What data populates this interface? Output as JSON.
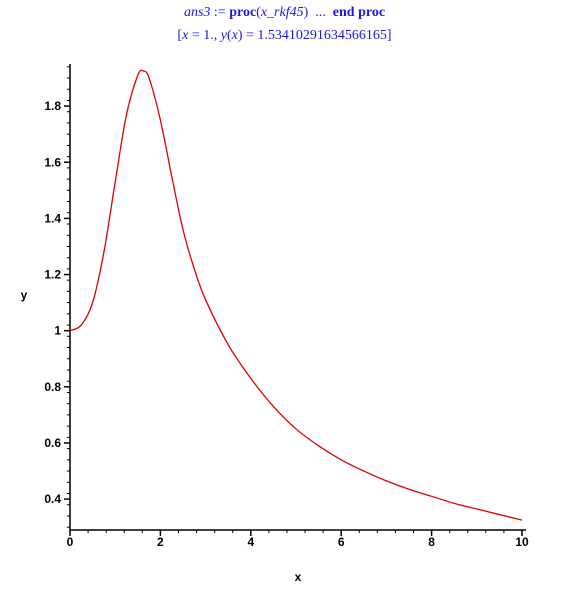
{
  "output": {
    "line1": {
      "name": "ans3",
      "assign": " := ",
      "kw_proc": "proc",
      "open": "(",
      "arg": "x_rkf45",
      "close": ")",
      "dots": "  ...  ",
      "kw_end": "end proc"
    },
    "line2": {
      "open": "[",
      "x": "x",
      "eq1": " = 1., ",
      "y": "y",
      "paren_open": "(",
      "x2": "x",
      "paren_close": ")",
      "eq2": " = 1.53410291634566165",
      "close": "]"
    }
  },
  "chart_data": {
    "type": "line",
    "xlabel": "x",
    "ylabel": "y",
    "xlim": [
      0,
      10
    ],
    "ylim": [
      0.29,
      1.95
    ],
    "x_ticks": [
      "0",
      "2",
      "4",
      "6",
      "8",
      "10"
    ],
    "y_ticks": [
      "0.4",
      "0.6",
      "0.8",
      "1",
      "1.2",
      "1.4",
      "1.6",
      "1.8"
    ],
    "line_color": "#dd0000",
    "grid": false,
    "series": [
      {
        "x": [
          0,
          0.25,
          0.5,
          0.75,
          1.0,
          1.25,
          1.5,
          1.62,
          1.75,
          2.0,
          2.25,
          2.5,
          2.75,
          3.0,
          3.5,
          4.0,
          4.5,
          5.0,
          5.5,
          6.0,
          6.5,
          7.0,
          7.5,
          8.0,
          8.5,
          9.0,
          9.5,
          10.0
        ],
        "y": [
          1.0,
          1.02,
          1.1,
          1.28,
          1.53,
          1.77,
          1.91,
          1.925,
          1.9,
          1.75,
          1.55,
          1.36,
          1.22,
          1.11,
          0.95,
          0.83,
          0.73,
          0.65,
          0.59,
          0.54,
          0.5,
          0.465,
          0.435,
          0.41,
          0.385,
          0.365,
          0.345,
          0.325
        ]
      }
    ]
  }
}
